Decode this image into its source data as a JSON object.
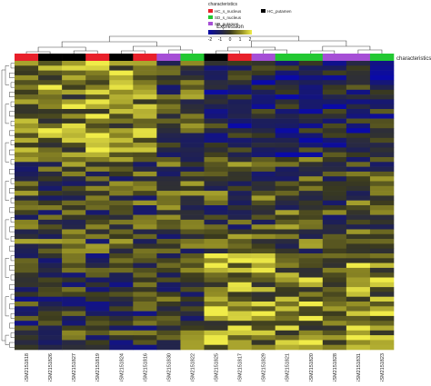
{
  "chart_data": {
    "type": "heatmap",
    "title": "",
    "xlabel": "",
    "ylabel": "",
    "annotation_label": "characteristics",
    "legend": {
      "title": "characteristics",
      "items": [
        {
          "label": "HC_s_nucleus",
          "color": "#e8202a"
        },
        {
          "label": "HC_putamen",
          "color": "#000000"
        },
        {
          "label": "SD_s_nucleus",
          "color": "#22c832"
        },
        {
          "label": "SD_putamen",
          "color": "#a64fd6"
        }
      ]
    },
    "color_scale": {
      "title": "Expression",
      "ticks": [
        "-2",
        "-1",
        "0",
        "1",
        "2"
      ],
      "range": [
        -2,
        2
      ],
      "colors": [
        "#0a0aa8",
        "#1c1e5a",
        "#3a3a1e",
        "#8f8a24",
        "#f0ec48"
      ]
    },
    "columns": [
      "GSM2151818",
      "GSM2151826",
      "GSM2151827",
      "GSM2151819",
      "GSM2151824",
      "GSM2151816",
      "GSM2151830",
      "GSM2151822",
      "GSM2151825",
      "GSM2151817",
      "GSM2151829",
      "GSM2151821",
      "GSM2151820",
      "GSM2151828",
      "GSM2151831",
      "GSM2151823"
    ],
    "column_groups": [
      "HC_s_nucleus",
      "HC_putamen",
      "HC_putamen",
      "HC_s_nucleus",
      "HC_putamen",
      "HC_s_nucleus",
      "SD_putamen",
      "SD_s_nucleus",
      "HC_putamen",
      "HC_s_nucleus",
      "SD_putamen",
      "SD_s_nucleus",
      "SD_s_nucleus",
      "SD_putamen",
      "SD_putamen",
      "SD_s_nucleus"
    ],
    "values_note_rows": 60
  }
}
